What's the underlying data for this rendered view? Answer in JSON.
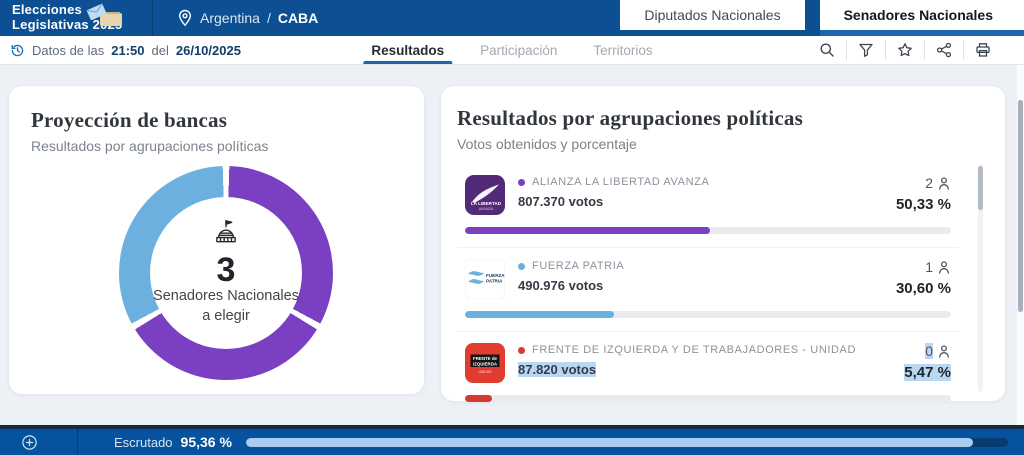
{
  "header": {
    "logo": {
      "line1": "Elecciones",
      "line2": "Legislativas 2025"
    },
    "location": {
      "country": "Argentina",
      "separator": "/",
      "region": "CABA"
    },
    "tabs": [
      {
        "label": "Diputados Nacionales",
        "active": false
      },
      {
        "label": "Senadores Nacionales",
        "active": true
      }
    ]
  },
  "toolbar": {
    "data_notice": {
      "prefix": "Datos de las",
      "time": "21:50",
      "middle": "del",
      "date": "26/10/2025"
    },
    "tabs": [
      {
        "label": "Resultados",
        "active": true
      },
      {
        "label": "Participación",
        "active": false
      },
      {
        "label": "Territorios",
        "active": false
      }
    ],
    "icons": [
      "search",
      "filter",
      "star",
      "share",
      "print"
    ]
  },
  "seats_card": {
    "title": "Proyección de bancas",
    "subtitle": "Resultados por agrupaciones políticas",
    "total": "3",
    "label_line1": "Senadores Nacionales",
    "label_line2": "a elegir"
  },
  "results_card": {
    "title": "Resultados por agrupaciones políticas",
    "subtitle": "Votos obtenidos y porcentaje",
    "parties": [
      {
        "name": "ALIANZA LA LIBERTAD AVANZA",
        "votes": "807.370 votos",
        "seats": "2",
        "percent": "50,33 %",
        "percent_value": 50.33,
        "color": "#7b3fc1",
        "logo": "lla",
        "selected": false
      },
      {
        "name": "FUERZA PATRIA",
        "votes": "490.976 votos",
        "seats": "1",
        "percent": "30,60 %",
        "percent_value": 30.6,
        "color": "#6cb0df",
        "logo": "fp",
        "selected": false
      },
      {
        "name": "FRENTE DE IZQUIERDA Y DE TRABAJADORES - UNIDAD",
        "votes": "87.820 votos",
        "seats": "0",
        "percent": "5,47 %",
        "percent_value": 5.47,
        "color": "#d53a30",
        "logo": "fit",
        "selected": true
      }
    ]
  },
  "footer": {
    "label": "Escrutado",
    "percent": "95,36 %",
    "percent_value": 95.36
  },
  "colors": {
    "header_blue": "#0c5093",
    "accent_blue": "#1b67ae",
    "footer_blue": "#05539f",
    "footer_track": "#063c70",
    "footer_fill": "#abccf1",
    "purple": "#7b3fc1",
    "sky_blue": "#6cb0df",
    "red": "#d53a30"
  },
  "chart_data": [
    {
      "type": "pie",
      "subtype": "donut",
      "title": "Proyección de bancas",
      "subtitle": "Resultados por agrupaciones políticas",
      "total_seats": 3,
      "center_label": "3 Senadores Nacionales a elegir",
      "segments": [
        {
          "name": "ALIANZA LA LIBERTAD AVANZA",
          "seats": 2,
          "color": "#7b3fc1"
        },
        {
          "name": "FUERZA PATRIA",
          "seats": 1,
          "color": "#6cb0df"
        }
      ]
    },
    {
      "type": "bar",
      "title": "Resultados por agrupaciones políticas",
      "subtitle": "Votos obtenidos y porcentaje",
      "categories": [
        "ALIANZA LA LIBERTAD AVANZA",
        "FUERZA PATRIA",
        "FRENTE DE IZQUIERDA Y DE TRABAJADORES - UNIDAD"
      ],
      "values": [
        50.33,
        30.6,
        5.47
      ],
      "votes": [
        807370,
        490976,
        87820
      ],
      "seats": [
        2,
        1,
        0
      ],
      "xlim": [
        0,
        100
      ],
      "unit": "%"
    }
  ]
}
